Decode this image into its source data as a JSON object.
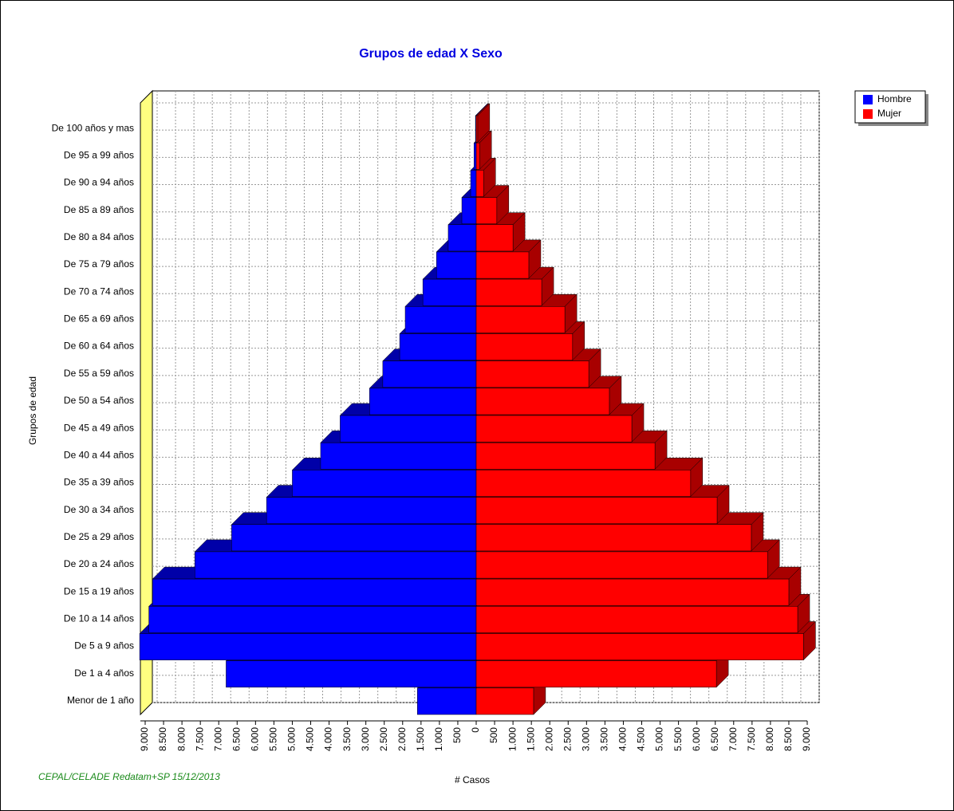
{
  "chart_data": {
    "type": "pyramid",
    "title": "Grupos de edad X Sexo",
    "x_label": "# Casos",
    "y_label": "Grupos de edad",
    "footer": "CEPAL/CELADE Redatam+SP 15/12/2013",
    "categories": [
      "Menor de 1 año",
      "De 1 a 4 años",
      "De 5 a 9 años",
      "De 10 a 14 años",
      "De 15 a 19 años",
      "De 20 a 24 años",
      "De 25 a 29 años",
      "De 30 a 34 años",
      "De 35 a 39 años",
      "De 40 a 44 años",
      "De 45 a 49 años",
      "De 50 a 54 años",
      "De 55 a 59 años",
      "De 60 a 64 años",
      "De 65 a 69 años",
      "De 70 a 74 años",
      "De 75 a 79 años",
      "De 80 a 84 años",
      "De 85 a 89 años",
      "De 90 a 94 años",
      "De 95 a 99 años",
      "De 100 años y mas"
    ],
    "series": [
      {
        "name": "Hombre",
        "color": "#0000ff",
        "values": [
          -1600,
          -6800,
          -9150,
          -8900,
          -8800,
          -7650,
          -6650,
          -5700,
          -5000,
          -4230,
          -3700,
          -2900,
          -2540,
          -2080,
          -1930,
          -1450,
          -1080,
          -760,
          -390,
          -150,
          -60,
          -20
        ]
      },
      {
        "name": "Mujer",
        "color": "#ff0000",
        "values": [
          1560,
          6530,
          8900,
          8740,
          8500,
          7920,
          7480,
          6550,
          5830,
          4860,
          4230,
          3620,
          3060,
          2620,
          2410,
          1780,
          1430,
          1000,
          560,
          200,
          90,
          40
        ]
      }
    ],
    "xlim": [
      -9000,
      9000
    ],
    "xticks": [
      {
        "value": -9000,
        "label": "9.000"
      },
      {
        "value": -8500,
        "label": "8.500"
      },
      {
        "value": -8000,
        "label": "8.000"
      },
      {
        "value": -7500,
        "label": "7.500"
      },
      {
        "value": -7000,
        "label": "7.000"
      },
      {
        "value": -6500,
        "label": "6.500"
      },
      {
        "value": -6000,
        "label": "6.000"
      },
      {
        "value": -5500,
        "label": "5.500"
      },
      {
        "value": -5000,
        "label": "5.000"
      },
      {
        "value": -4500,
        "label": "4.500"
      },
      {
        "value": -4000,
        "label": "4.000"
      },
      {
        "value": -3500,
        "label": "3.500"
      },
      {
        "value": -3000,
        "label": "3.000"
      },
      {
        "value": -2500,
        "label": "2.500"
      },
      {
        "value": -2000,
        "label": "2.000"
      },
      {
        "value": -1500,
        "label": "1.500"
      },
      {
        "value": -1000,
        "label": "1.000"
      },
      {
        "value": -500,
        "label": "500"
      },
      0,
      500,
      {
        "value": 1000,
        "label": "1.000"
      },
      {
        "value": 1500,
        "label": "1.500"
      },
      {
        "value": 2000,
        "label": "2.000"
      },
      {
        "value": 2500,
        "label": "2.500"
      },
      {
        "value": 3000,
        "label": "3.000"
      },
      {
        "value": 3500,
        "label": "3.500"
      },
      {
        "value": 4000,
        "label": "4.000"
      },
      {
        "value": 4500,
        "label": "4.500"
      },
      {
        "value": 5000,
        "label": "5.000"
      },
      {
        "value": 5500,
        "label": "5.500"
      },
      {
        "value": 6000,
        "label": "6.000"
      },
      {
        "value": 6500,
        "label": "6.500"
      },
      {
        "value": 7000,
        "label": "7.000"
      },
      {
        "value": 7500,
        "label": "7.500"
      },
      {
        "value": 8000,
        "label": "8.000"
      },
      {
        "value": 8500,
        "label": "8.500"
      },
      {
        "value": 9000,
        "label": "9.000"
      }
    ],
    "grid": true,
    "legend": "top-right"
  }
}
